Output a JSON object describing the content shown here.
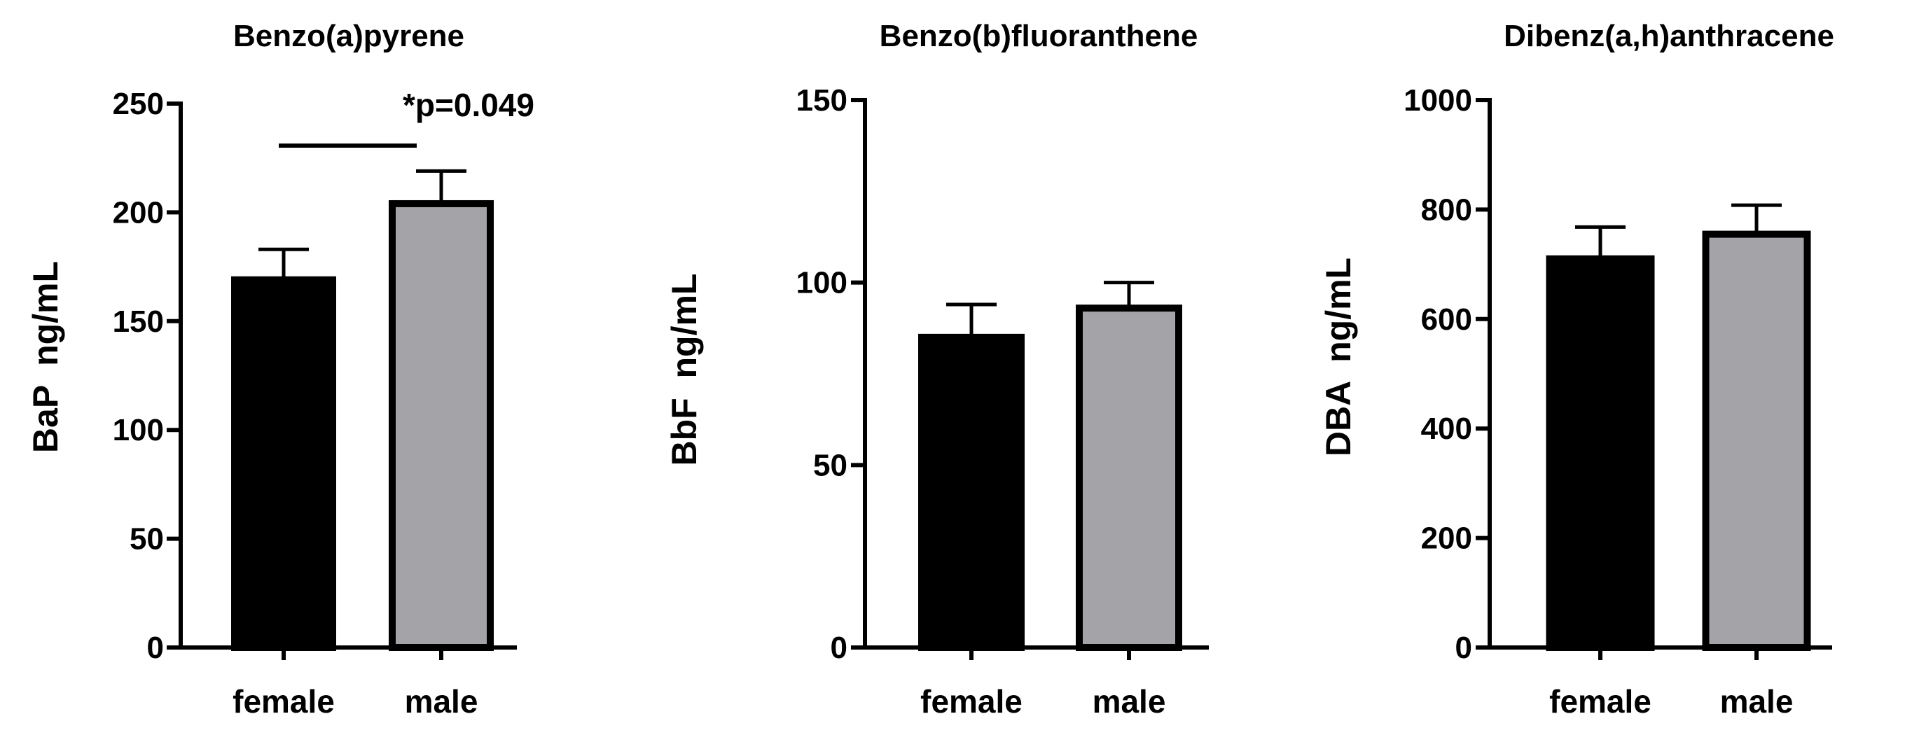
{
  "colors": {
    "female_fill": "#000000",
    "male_fill": "#a3a3a8",
    "outline": "#000000",
    "background": "#ffffff"
  },
  "chart_data": [
    {
      "type": "bar",
      "title": "Benzo(a)pyrene",
      "ylabel": "BaP  ng/mL",
      "xlabel": "",
      "categories": [
        "female",
        "male"
      ],
      "values": [
        169,
        204
      ],
      "error_upper": [
        183,
        219
      ],
      "ylim": [
        0,
        250
      ],
      "yticks": [
        0,
        50,
        100,
        150,
        200,
        250
      ],
      "grid": false,
      "significance": {
        "label": "*p=0.049",
        "between": [
          "female",
          "male"
        ]
      }
    },
    {
      "type": "bar",
      "title": "Benzo(b)fluoranthene",
      "ylabel": "BbF  ng/mL",
      "xlabel": "",
      "categories": [
        "female",
        "male"
      ],
      "values": [
        85,
        93
      ],
      "error_upper": [
        94,
        100
      ],
      "ylim": [
        0,
        150
      ],
      "yticks": [
        0,
        50,
        100,
        150
      ],
      "grid": false
    },
    {
      "type": "bar",
      "title": "Dibenz(a,h)anthracene",
      "ylabel": "DBA  ng/mL",
      "xlabel": "",
      "categories": [
        "female",
        "male"
      ],
      "values": [
        710,
        755
      ],
      "error_upper": [
        768,
        808
      ],
      "ylim": [
        0,
        1000
      ],
      "yticks": [
        0,
        200,
        400,
        600,
        800,
        1000
      ],
      "grid": false
    }
  ]
}
